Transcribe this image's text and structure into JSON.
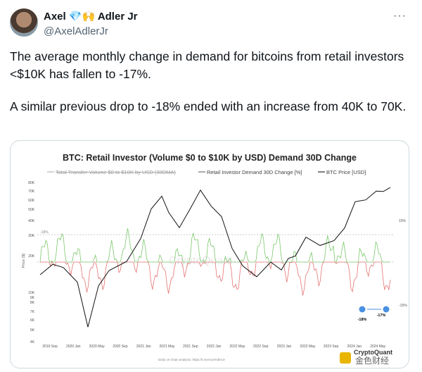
{
  "tweet": {
    "author": {
      "name": "Axel 💎🙌 Adler Jr",
      "handle": "@AxelAdlerJr",
      "more": "···"
    },
    "paragraphs": [
      "The average monthly change in demand for bitcoins from retail investors <$10K has fallen to -17%.",
      "A similar previous drop to -18% ended with an increase from 40K to 70K."
    ],
    "image": {
      "title": "BTC: Retail Investor (Volume $0 to $10K by USD) Demand 30D Change",
      "legend": [
        "Total Transfer Volume $0 to $10K by USD (30DMA)",
        "Retail Investor Demand 30D Change [%]",
        "BTC Price [USD]"
      ],
      "y_axis_label": "Price ($)",
      "yticks": [
        "80K",
        "70K",
        "60K",
        "50K",
        "40K",
        "30K",
        "20K",
        "10K",
        "9K",
        "8K",
        "7K",
        "6K",
        "5K",
        "4K"
      ],
      "y2ticks": [
        "15%",
        "-15%"
      ],
      "xticks": [
        "2019 Sep",
        "2020 Jan",
        "2020 May",
        "2020 Sep",
        "2021 Jan",
        "2021 May",
        "2021 Sep",
        "2022 Jan",
        "2022 May",
        "2022 Sep",
        "2023 Jan",
        "2023 May",
        "2023 Sep",
        "2024 Jan",
        "2024 May"
      ],
      "level_label": "-18%",
      "annotations": [
        "-18%",
        "-17%"
      ],
      "footer": "Daily on-chain analysis: https://t.me/AxelAdlerJr",
      "watermark": "CryptoQuant",
      "source_mark": "金色财经"
    }
  }
}
